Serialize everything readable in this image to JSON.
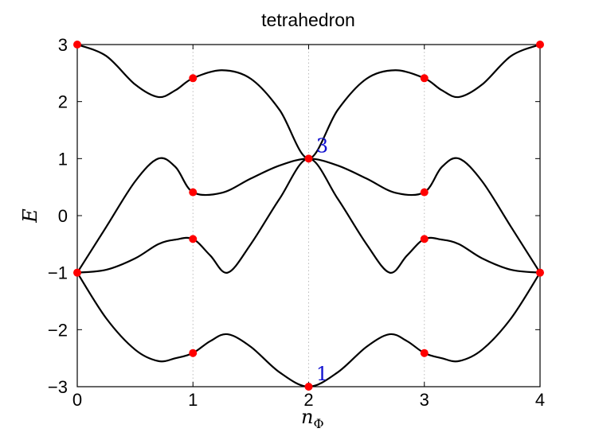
{
  "chart_data": {
    "type": "line",
    "title": "tetrahedron",
    "xlabel": "n_Φ",
    "ylabel": "E",
    "xlim": [
      0,
      4
    ],
    "ylim": [
      -3,
      3
    ],
    "x_ticks": [
      "0",
      "1",
      "2",
      "3",
      "4"
    ],
    "y_ticks": [
      "−3",
      "−2",
      "−1",
      "0",
      "1",
      "2",
      "3"
    ],
    "grid": "vertical dotted lines at x = 1, 2, 3",
    "line_color": "#000000",
    "marker_color": "#ff0000",
    "series": [
      {
        "x": [
          0,
          0.25,
          0.5,
          0.7,
          0.85,
          1,
          1.25,
          1.5,
          1.75,
          2,
          2.25,
          2.5,
          2.75,
          3,
          3.15,
          3.3,
          3.5,
          3.75,
          4
        ],
        "y": [
          3,
          2.8,
          2.3,
          2.08,
          2.2,
          2.41,
          2.55,
          2.4,
          1.85,
          1,
          1.85,
          2.4,
          2.55,
          2.41,
          2.2,
          2.08,
          2.3,
          2.8,
          3
        ]
      },
      {
        "x": [
          0,
          0.25,
          0.5,
          0.7,
          0.85,
          1,
          1.25,
          1.5,
          1.75,
          2,
          2.25,
          2.5,
          2.75,
          3,
          3.15,
          3.3,
          3.5,
          3.75,
          4
        ],
        "y": [
          -1,
          -0.2,
          0.6,
          1,
          0.85,
          0.41,
          0.4,
          0.65,
          0.88,
          1,
          0.88,
          0.65,
          0.4,
          0.41,
          0.85,
          1,
          0.6,
          -0.2,
          -1
        ]
      },
      {
        "x": [
          0,
          0.25,
          0.5,
          0.7,
          0.85,
          1,
          1.15,
          1.3,
          1.5,
          1.75,
          2,
          2.25,
          2.5,
          2.7,
          2.85,
          3,
          3.15,
          3.3,
          3.5,
          3.75,
          4
        ],
        "y": [
          -1,
          -0.95,
          -0.75,
          -0.5,
          -0.42,
          -0.41,
          -0.7,
          -1,
          -0.5,
          0.3,
          1,
          0.3,
          -0.5,
          -1,
          -0.7,
          -0.41,
          -0.42,
          -0.5,
          -0.75,
          -0.95,
          -1
        ]
      },
      {
        "x": [
          0,
          0.25,
          0.5,
          0.7,
          0.85,
          1,
          1.15,
          1.3,
          1.5,
          1.75,
          2,
          2.25,
          2.5,
          2.7,
          2.85,
          3,
          3.15,
          3.3,
          3.5,
          3.75,
          4
        ],
        "y": [
          -1,
          -1.8,
          -2.35,
          -2.55,
          -2.5,
          -2.41,
          -2.2,
          -2.08,
          -2.3,
          -2.75,
          -3,
          -2.75,
          -2.3,
          -2.08,
          -2.2,
          -2.41,
          -2.5,
          -2.55,
          -2.35,
          -1.8,
          -1
        ]
      }
    ],
    "markers": [
      {
        "x": 0,
        "y": 3
      },
      {
        "x": 0,
        "y": -1
      },
      {
        "x": 1,
        "y": 2.41
      },
      {
        "x": 1,
        "y": 0.41
      },
      {
        "x": 1,
        "y": -0.41
      },
      {
        "x": 1,
        "y": -2.41
      },
      {
        "x": 2,
        "y": 1
      },
      {
        "x": 2,
        "y": -3
      },
      {
        "x": 3,
        "y": 2.41
      },
      {
        "x": 3,
        "y": 0.41
      },
      {
        "x": 3,
        "y": -0.41
      },
      {
        "x": 3,
        "y": -2.41
      },
      {
        "x": 4,
        "y": 3
      },
      {
        "x": 4,
        "y": -1
      }
    ],
    "annotations": [
      {
        "text": "3",
        "x": 2,
        "y": 1
      },
      {
        "text": "1",
        "x": 2,
        "y": -3
      }
    ]
  }
}
